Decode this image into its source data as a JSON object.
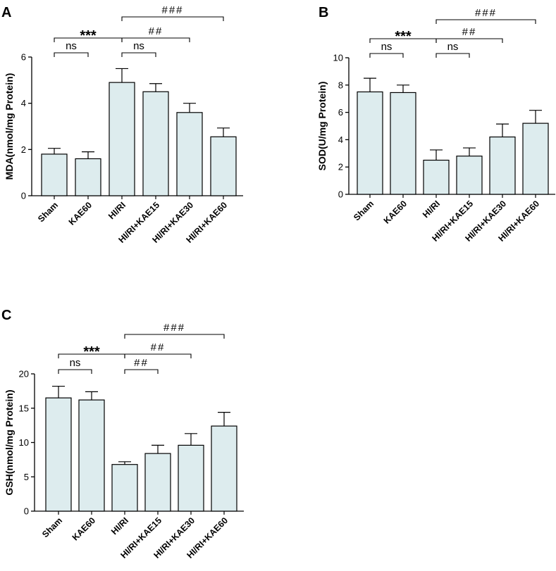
{
  "colors": {
    "bar_fill": "#ddecee",
    "stroke": "#000000"
  },
  "categories": [
    "Sham",
    "KAE60",
    "HI/RI",
    "HI/RI+KAE15",
    "HI/RI+KAE30",
    "HI/RI+KAE60"
  ],
  "chart_data": [
    {
      "panel": "A",
      "type": "bar",
      "title": "",
      "xlabel": "",
      "ylabel": "MDA(nmol/mg Protein)",
      "categories": [
        "Sham",
        "KAE60",
        "HI/RI",
        "HI/RI+KAE15",
        "HI/RI+KAE30",
        "HI/RI+KAE60"
      ],
      "values": [
        1.8,
        1.6,
        4.9,
        4.5,
        3.6,
        2.55
      ],
      "errors": [
        0.25,
        0.3,
        0.6,
        0.35,
        0.4,
        0.38
      ],
      "ylim": [
        0,
        6
      ],
      "yticks": [
        0,
        2,
        4,
        6
      ],
      "yticklabels": [
        "0",
        "2",
        "4",
        "6"
      ],
      "annotations": [
        {
          "from": 0,
          "to": 1,
          "text": "ns",
          "kind": "ns",
          "level": 0
        },
        {
          "from": 2,
          "to": 3,
          "text": "ns",
          "kind": "ns",
          "level": 0
        },
        {
          "from": 0,
          "to": 2,
          "text": "***",
          "kind": "star",
          "level": 1
        },
        {
          "from": 2,
          "to": 4,
          "text": "##",
          "kind": "hash",
          "level": 1
        },
        {
          "from": 2,
          "to": 5,
          "text": "###",
          "kind": "hash",
          "level": 2
        }
      ]
    },
    {
      "panel": "B",
      "type": "bar",
      "title": "",
      "xlabel": "",
      "ylabel": "SOD(U/mg Protein)",
      "categories": [
        "Sham",
        "KAE60",
        "HI/RI",
        "HI/RI+KAE15",
        "HI/RI+KAE30",
        "HI/RI+KAE60"
      ],
      "values": [
        7.5,
        7.45,
        2.5,
        2.8,
        4.2,
        5.2
      ],
      "errors": [
        1.0,
        0.55,
        0.75,
        0.6,
        0.95,
        0.95
      ],
      "ylim": [
        0,
        10
      ],
      "yticks": [
        0,
        2,
        4,
        6,
        8,
        10
      ],
      "yticklabels": [
        "0",
        "2",
        "4",
        "6",
        "8",
        "10"
      ],
      "annotations": [
        {
          "from": 0,
          "to": 1,
          "text": "ns",
          "kind": "ns",
          "level": 0
        },
        {
          "from": 2,
          "to": 3,
          "text": "ns",
          "kind": "ns",
          "level": 0
        },
        {
          "from": 0,
          "to": 2,
          "text": "***",
          "kind": "star",
          "level": 1
        },
        {
          "from": 2,
          "to": 4,
          "text": "##",
          "kind": "hash",
          "level": 1
        },
        {
          "from": 2,
          "to": 5,
          "text": "###",
          "kind": "hash",
          "level": 2
        }
      ]
    },
    {
      "panel": "C",
      "type": "bar",
      "title": "",
      "xlabel": "",
      "ylabel": "GSH(nmol/mg Protein)",
      "categories": [
        "Sham",
        "KAE60",
        "HI/RI",
        "HI/RI+KAE15",
        "HI/RI+KAE30",
        "HI/RI+KAE60"
      ],
      "values": [
        16.5,
        16.2,
        6.8,
        8.4,
        9.6,
        12.4
      ],
      "errors": [
        1.7,
        1.2,
        0.4,
        1.2,
        1.7,
        2.0
      ],
      "ylim": [
        0,
        20
      ],
      "yticks": [
        0,
        5,
        10,
        15,
        20
      ],
      "yticklabels": [
        "0",
        "5",
        "10",
        "15",
        "20"
      ],
      "annotations": [
        {
          "from": 0,
          "to": 1,
          "text": "ns",
          "kind": "ns",
          "level": 0
        },
        {
          "from": 2,
          "to": 3,
          "text": "##",
          "kind": "hash",
          "level": 0
        },
        {
          "from": 0,
          "to": 2,
          "text": "***",
          "kind": "star",
          "level": 1
        },
        {
          "from": 2,
          "to": 4,
          "text": "##",
          "kind": "hash",
          "level": 1
        },
        {
          "from": 2,
          "to": 5,
          "text": "###",
          "kind": "hash",
          "level": 2
        }
      ]
    }
  ]
}
